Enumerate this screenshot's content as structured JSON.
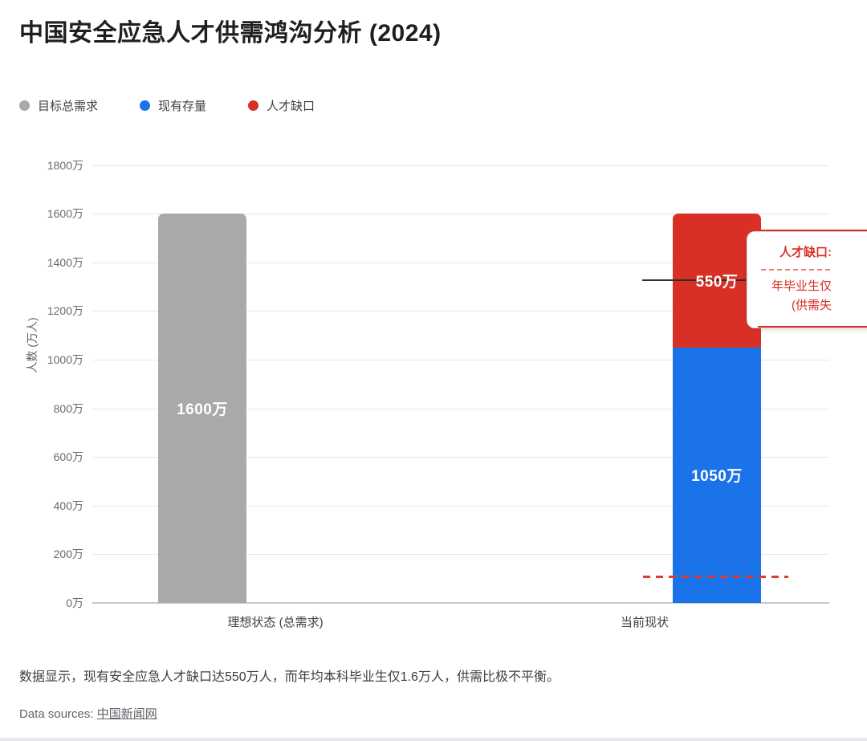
{
  "title": "中国安全应急人才供需鸿沟分析 (2024)",
  "legend": {
    "items": [
      {
        "id": "target-demand",
        "label": "目标总需求",
        "color": "#a9a9a9"
      },
      {
        "id": "current-stock",
        "label": "现有存量",
        "color": "#1a73e8"
      },
      {
        "id": "talent-gap",
        "label": "人才缺口",
        "color": "#d93025"
      }
    ]
  },
  "chart_data": {
    "type": "bar",
    "stacked": true,
    "title": "中国安全应急人才供需鸿沟分析 (2024)",
    "categories": [
      "理想状态 (总需求)",
      "当前现状"
    ],
    "series": [
      {
        "name": "目标总需求",
        "values": [
          1600,
          0
        ],
        "color": "#a9a9a9"
      },
      {
        "name": "现有存量",
        "values": [
          0,
          1050
        ],
        "color": "#1a73e8"
      },
      {
        "name": "人才缺口",
        "values": [
          0,
          550
        ],
        "color": "#d93025"
      }
    ],
    "unit": "万",
    "ylabel": "人数 (万人)",
    "ylim": [
      0,
      1800
    ],
    "yticks": [
      {
        "value": 0,
        "label": "0万"
      },
      {
        "value": 200,
        "label": "200万"
      },
      {
        "value": 400,
        "label": "400万"
      },
      {
        "value": 600,
        "label": "600万"
      },
      {
        "value": 800,
        "label": "800万"
      },
      {
        "value": 1000,
        "label": "1000万"
      },
      {
        "value": 1200,
        "label": "1200万"
      },
      {
        "value": 1400,
        "label": "1400万"
      },
      {
        "value": 1600,
        "label": "1600万"
      },
      {
        "value": 1800,
        "label": "1800万"
      }
    ],
    "grid": true,
    "legend_position": "top-left",
    "bars": [
      {
        "id": "ideal",
        "category": "理想状态 (总需求)",
        "segments": [
          {
            "id": "target-demand",
            "series": "目标总需求",
            "value": 1600,
            "label": "1600万",
            "color": "#a9a9a9"
          }
        ]
      },
      {
        "id": "current",
        "category": "当前现状",
        "segments": [
          {
            "id": "current-stock",
            "series": "现有存量",
            "value": 1050,
            "label": "1050万",
            "color": "#1a73e8"
          },
          {
            "id": "talent-gap",
            "series": "人才缺口",
            "value": 550,
            "label": "550万",
            "color": "#d93025"
          }
        ]
      }
    ],
    "annotation": {
      "line1": "人才缺口:",
      "line2": "年毕业生仅",
      "line3": "(供需失"
    }
  },
  "caption": "数据显示，现有安全应急人才缺口达550万人，而年均本科毕业生仅1.6万人，供需比极不平衡。",
  "source": {
    "prefix": "Data sources: ",
    "link": "中国新闻网"
  }
}
